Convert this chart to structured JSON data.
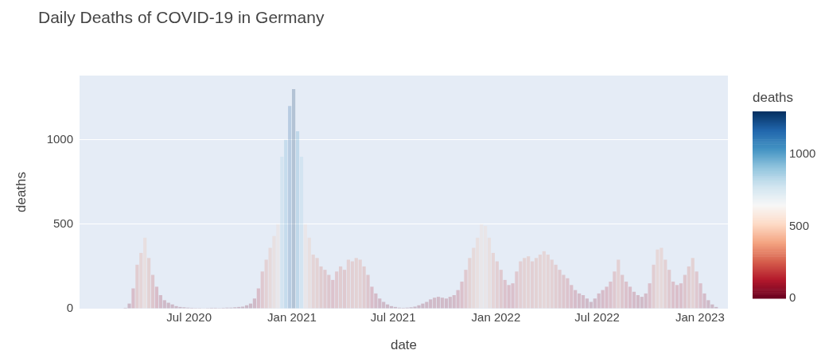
{
  "chart_data": {
    "type": "bar",
    "title": "Daily Deaths of COVID-19 in Germany",
    "xlabel": "date",
    "ylabel": "deaths",
    "clabel": "deaths",
    "x": [
      "2020-03-09",
      "2020-03-16",
      "2020-03-23",
      "2020-03-30",
      "2020-04-06",
      "2020-04-13",
      "2020-04-20",
      "2020-04-27",
      "2020-05-04",
      "2020-05-11",
      "2020-05-18",
      "2020-05-25",
      "2020-06-01",
      "2020-06-08",
      "2020-06-15",
      "2020-06-22",
      "2020-06-29",
      "2020-07-06",
      "2020-07-13",
      "2020-07-20",
      "2020-07-27",
      "2020-08-03",
      "2020-08-10",
      "2020-08-17",
      "2020-08-24",
      "2020-08-31",
      "2020-09-07",
      "2020-09-14",
      "2020-09-21",
      "2020-09-28",
      "2020-10-05",
      "2020-10-12",
      "2020-10-19",
      "2020-10-26",
      "2020-11-02",
      "2020-11-09",
      "2020-11-16",
      "2020-11-23",
      "2020-11-30",
      "2020-12-07",
      "2020-12-14",
      "2020-12-21",
      "2020-12-28",
      "2021-01-04",
      "2021-01-11",
      "2021-01-18",
      "2021-01-25",
      "2021-02-01",
      "2021-02-08",
      "2021-02-15",
      "2021-02-22",
      "2021-03-01",
      "2021-03-08",
      "2021-03-15",
      "2021-03-22",
      "2021-03-29",
      "2021-04-05",
      "2021-04-12",
      "2021-04-19",
      "2021-04-26",
      "2021-05-03",
      "2021-05-10",
      "2021-05-17",
      "2021-05-24",
      "2021-05-31",
      "2021-06-07",
      "2021-06-14",
      "2021-06-21",
      "2021-06-28",
      "2021-07-05",
      "2021-07-12",
      "2021-07-19",
      "2021-07-26",
      "2021-08-02",
      "2021-08-09",
      "2021-08-16",
      "2021-08-23",
      "2021-08-30",
      "2021-09-06",
      "2021-09-13",
      "2021-09-20",
      "2021-09-27",
      "2021-10-04",
      "2021-10-11",
      "2021-10-18",
      "2021-10-25",
      "2021-11-01",
      "2021-11-08",
      "2021-11-15",
      "2021-11-22",
      "2021-11-29",
      "2021-12-06",
      "2021-12-13",
      "2021-12-20",
      "2021-12-27",
      "2022-01-03",
      "2022-01-10",
      "2022-01-17",
      "2022-01-24",
      "2022-01-31",
      "2022-02-07",
      "2022-02-14",
      "2022-02-21",
      "2022-02-28",
      "2022-03-07",
      "2022-03-14",
      "2022-03-21",
      "2022-03-28",
      "2022-04-04",
      "2022-04-11",
      "2022-04-18",
      "2022-04-25",
      "2022-05-02",
      "2022-05-09",
      "2022-05-16",
      "2022-05-23",
      "2022-05-30",
      "2022-06-06",
      "2022-06-13",
      "2022-06-20",
      "2022-06-27",
      "2022-07-04",
      "2022-07-11",
      "2022-07-18",
      "2022-07-25",
      "2022-08-01",
      "2022-08-08",
      "2022-08-15",
      "2022-08-22",
      "2022-08-29",
      "2022-09-05",
      "2022-09-12",
      "2022-09-19",
      "2022-09-26",
      "2022-10-03",
      "2022-10-10",
      "2022-10-17",
      "2022-10-24",
      "2022-10-31",
      "2022-11-07",
      "2022-11-14",
      "2022-11-21",
      "2022-11-28",
      "2022-12-05",
      "2022-12-12",
      "2022-12-19",
      "2022-12-26",
      "2023-01-02",
      "2023-01-09",
      "2023-01-16",
      "2023-01-23",
      "2023-01-30"
    ],
    "values": [
      5,
      30,
      120,
      260,
      330,
      420,
      300,
      200,
      130,
      80,
      50,
      35,
      25,
      15,
      10,
      8,
      6,
      5,
      4,
      4,
      3,
      4,
      5,
      5,
      4,
      5,
      6,
      6,
      8,
      10,
      12,
      20,
      30,
      60,
      120,
      220,
      290,
      360,
      430,
      500,
      900,
      1000,
      1200,
      1300,
      1050,
      900,
      500,
      420,
      320,
      300,
      250,
      230,
      200,
      170,
      220,
      250,
      230,
      290,
      280,
      300,
      290,
      250,
      200,
      130,
      90,
      60,
      40,
      25,
      15,
      10,
      6,
      5,
      6,
      8,
      12,
      20,
      30,
      40,
      55,
      65,
      70,
      65,
      60,
      70,
      80,
      110,
      160,
      230,
      300,
      360,
      420,
      500,
      490,
      420,
      330,
      280,
      230,
      170,
      140,
      150,
      220,
      280,
      300,
      310,
      280,
      300,
      320,
      340,
      320,
      290,
      260,
      230,
      200,
      180,
      140,
      110,
      90,
      80,
      60,
      40,
      60,
      90,
      110,
      130,
      160,
      220,
      290,
      200,
      160,
      130,
      100,
      80,
      70,
      90,
      150,
      260,
      350,
      360,
      290,
      230,
      160,
      140,
      150,
      200,
      250,
      300,
      220,
      150,
      90,
      50,
      25,
      10
    ],
    "xlim": [
      "2019-12-18",
      "2023-02-20"
    ],
    "xticks": [
      {
        "value": "2020-07-01",
        "label": "Jul 2020"
      },
      {
        "value": "2021-01-01",
        "label": "Jan 2021"
      },
      {
        "value": "2021-07-01",
        "label": "Jul 2021"
      },
      {
        "value": "2022-01-01",
        "label": "Jan 2022"
      },
      {
        "value": "2022-07-01",
        "label": "Jul 2022"
      },
      {
        "value": "2023-01-01",
        "label": "Jan 2023"
      }
    ],
    "ylim": [
      0,
      1380
    ],
    "yticks": [
      0,
      500,
      1000
    ],
    "clim": [
      0,
      1300
    ],
    "cticks": [
      0,
      500,
      1000
    ],
    "grid": "y",
    "legend": false
  }
}
